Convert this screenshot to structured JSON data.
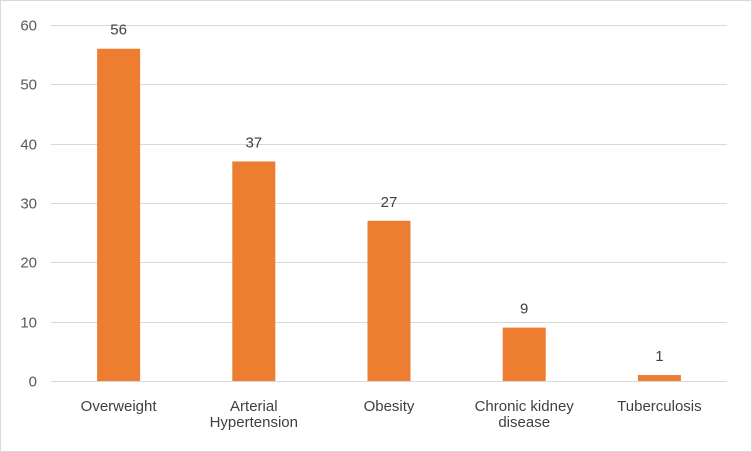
{
  "chart_data": {
    "type": "bar",
    "categories": [
      "Overweight",
      "Arterial Hypertension",
      "Obesity",
      "Chronic kidney disease",
      "Tuberculosis"
    ],
    "category_lines": [
      [
        "Overweight"
      ],
      [
        "Arterial",
        "Hypertension"
      ],
      [
        "Obesity"
      ],
      [
        "Chronic kidney",
        "disease"
      ],
      [
        "Tuberculosis"
      ]
    ],
    "values": [
      56,
      37,
      27,
      9,
      1
    ],
    "ylim": [
      0,
      60
    ],
    "yticks": [
      0,
      10,
      20,
      30,
      40,
      50,
      60
    ],
    "grid": true,
    "bar_color": "#ED7D31",
    "data_labels": true
  }
}
